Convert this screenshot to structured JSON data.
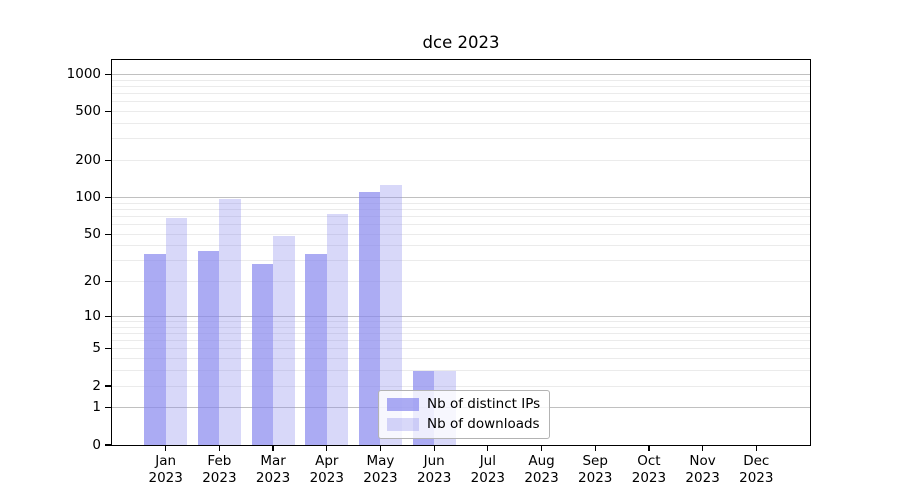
{
  "chart_data": {
    "type": "bar",
    "title": "dce 2023",
    "categories": [
      "Jan 2023",
      "Feb 2023",
      "Mar 2023",
      "Apr 2023",
      "May 2023",
      "Jun 2023",
      "Jul 2023",
      "Aug 2023",
      "Sep 2023",
      "Oct 2023",
      "Nov 2023",
      "Dec 2023"
    ],
    "series": [
      {
        "name": "Nb of distinct IPs",
        "color": "#8888ee",
        "alpha": 0.7,
        "values": [
          34,
          36,
          28,
          34,
          111,
          3,
          0,
          0,
          0,
          0,
          0,
          0
        ]
      },
      {
        "name": "Nb of downloads",
        "color": "#8888ee",
        "alpha": 0.33,
        "values": [
          68,
          97,
          48,
          73,
          127,
          3,
          0,
          0,
          0,
          0,
          0,
          0
        ]
      }
    ],
    "yscale": "log1p",
    "yticks": [
      0,
      1,
      2,
      5,
      10,
      20,
      50,
      100,
      200,
      500,
      1000
    ],
    "ylim": [
      0,
      1310
    ],
    "grid": true,
    "legend_position": "lower center"
  },
  "colors": {
    "grid_major": "#c0c0c0",
    "grid_minor": "#ebebeb",
    "axis": "#000000",
    "legend_border": "#b3b3b3"
  }
}
